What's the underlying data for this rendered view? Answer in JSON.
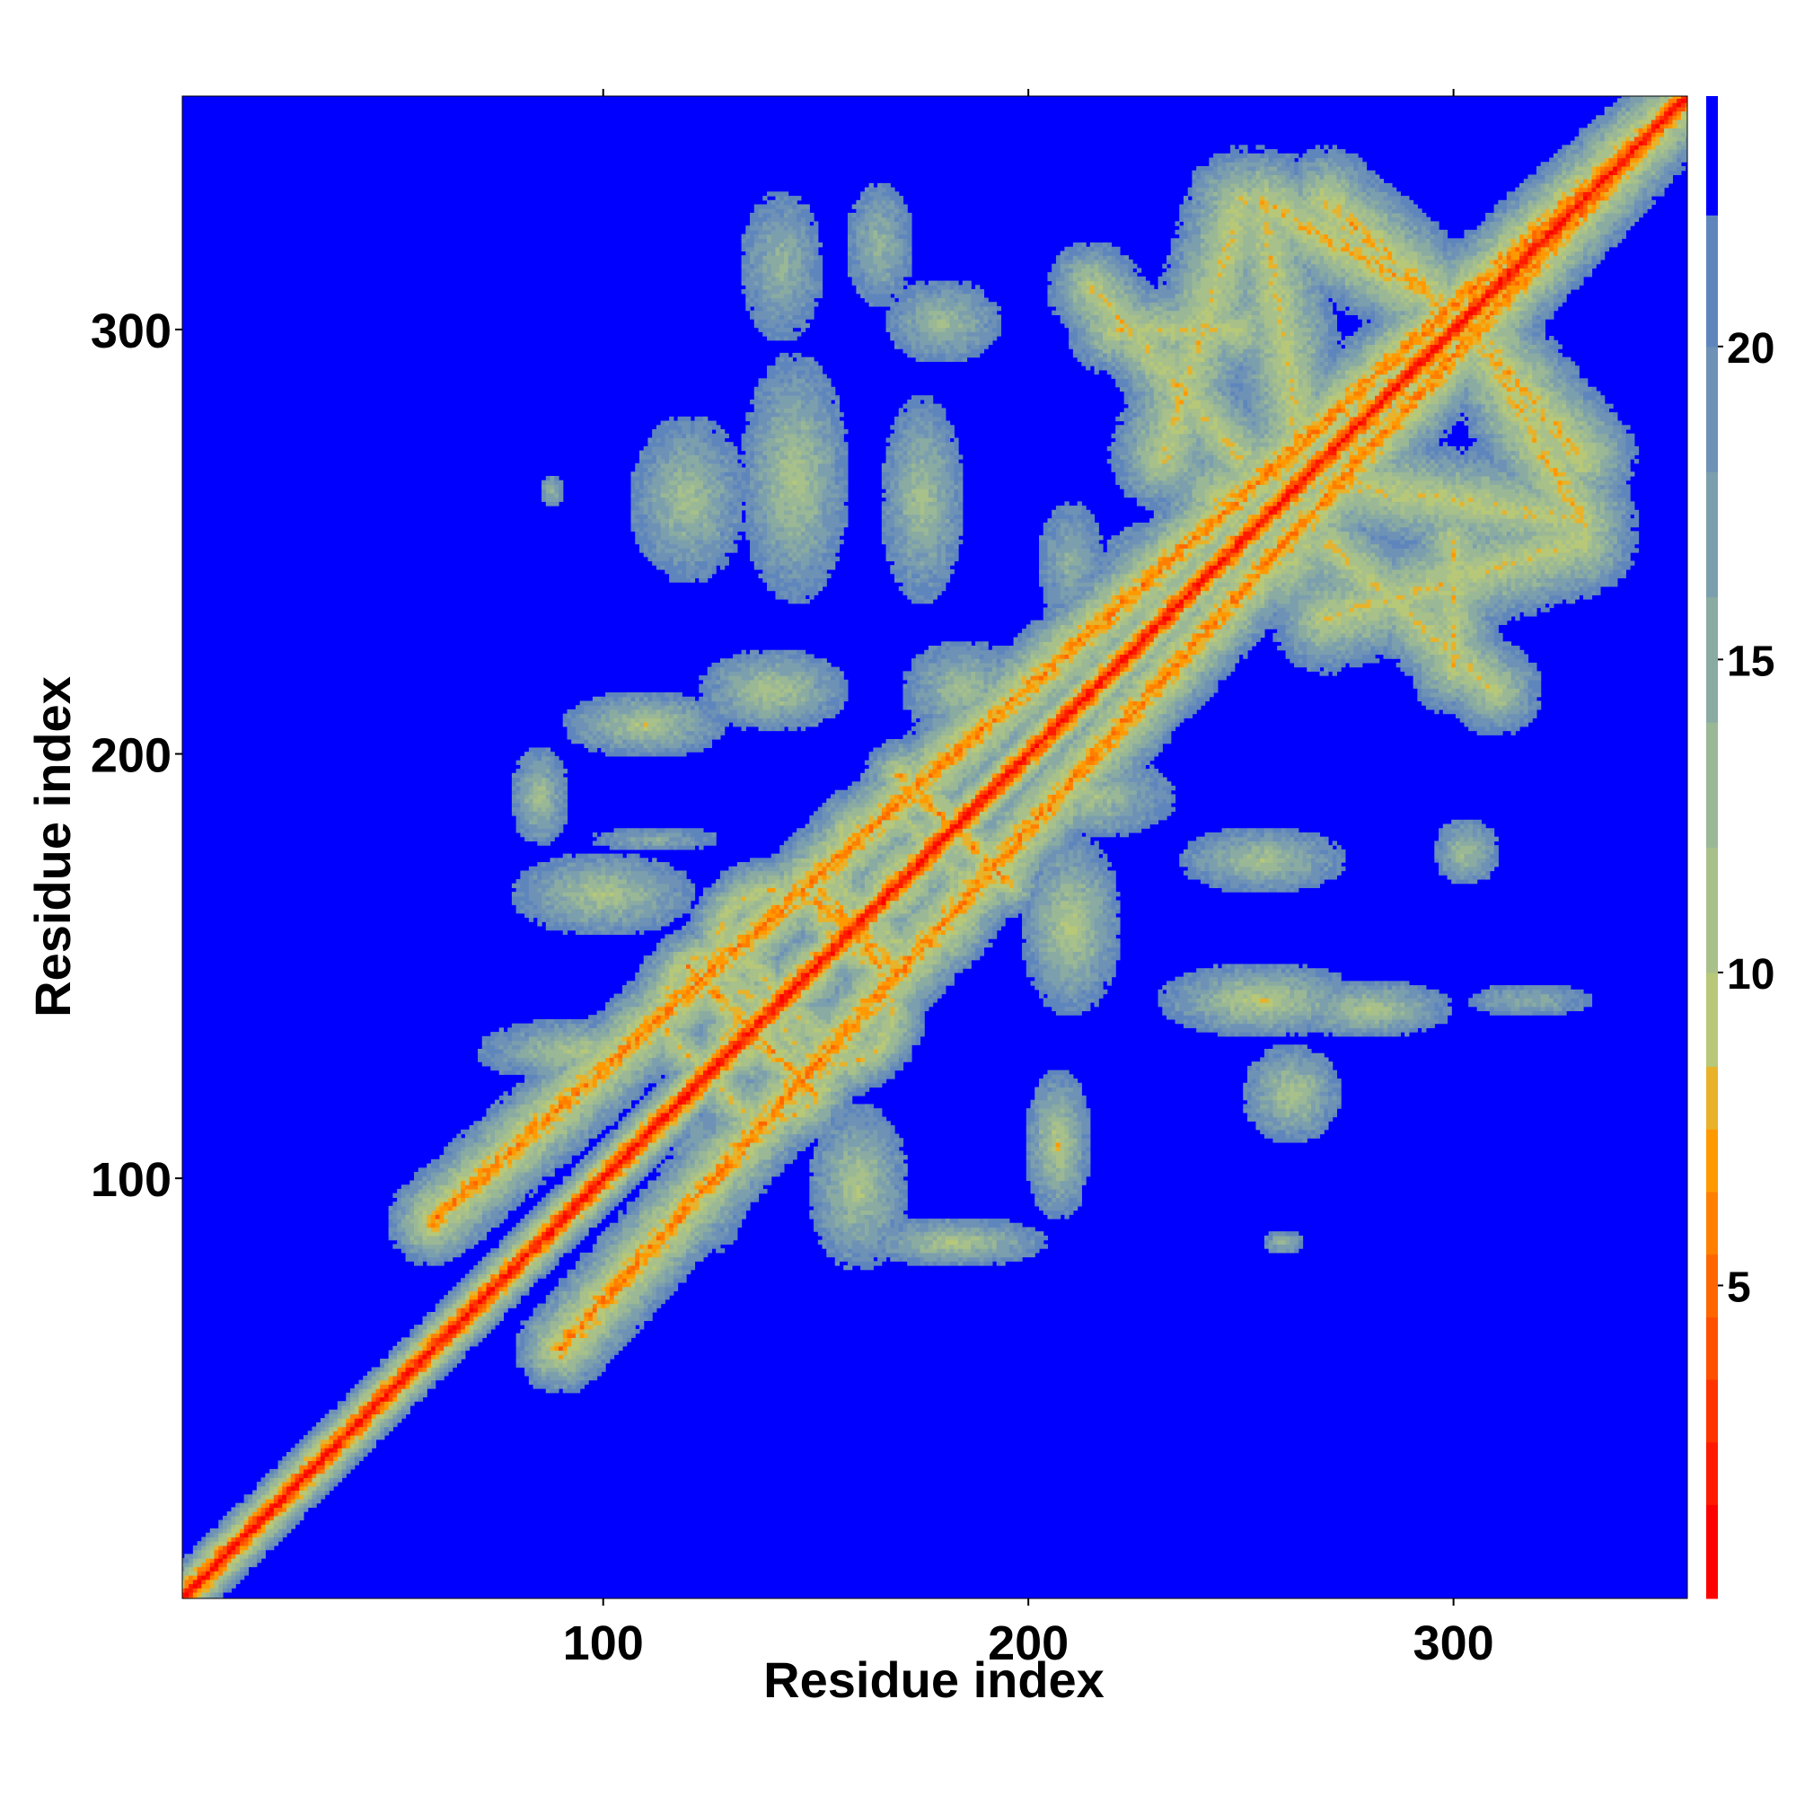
{
  "chart_data": {
    "type": "heatmap",
    "title": "",
    "xlabel": "Residue index",
    "ylabel": "Residue index",
    "xlim": [
      1,
      355
    ],
    "ylim": [
      1,
      355
    ],
    "xticks": [
      100,
      200,
      300
    ],
    "yticks": [
      100,
      200,
      300
    ],
    "colorbar": {
      "range": [
        0,
        24
      ],
      "ticks": [
        5,
        10,
        15,
        20
      ],
      "bands": [
        {
          "from": 0,
          "to": 1.5,
          "color": "#ff0000"
        },
        {
          "from": 1.5,
          "to": 2.5,
          "color": "#ff1a00"
        },
        {
          "from": 2.5,
          "to": 3.5,
          "color": "#ff3300"
        },
        {
          "from": 3.5,
          "to": 4.5,
          "color": "#ff5000"
        },
        {
          "from": 4.5,
          "to": 5.5,
          "color": "#ff6600"
        },
        {
          "from": 5.5,
          "to": 6.5,
          "color": "#ff8000"
        },
        {
          "from": 6.5,
          "to": 7.5,
          "color": "#ff9900"
        },
        {
          "from": 7.5,
          "to": 8.5,
          "color": "#e8b22a"
        },
        {
          "from": 8.5,
          "to": 10,
          "color": "#b7c878"
        },
        {
          "from": 10,
          "to": 12,
          "color": "#a8c08a"
        },
        {
          "from": 12,
          "to": 14,
          "color": "#9ab896"
        },
        {
          "from": 14,
          "to": 16,
          "color": "#8aaba2"
        },
        {
          "from": 16,
          "to": 18,
          "color": "#7c9fae"
        },
        {
          "from": 18,
          "to": 20,
          "color": "#6e92b6"
        },
        {
          "from": 20,
          "to": 22.1,
          "color": "#5f86bc"
        },
        {
          "from": 22.1,
          "to": 24,
          "color": "#0000ff"
        }
      ]
    },
    "background_color": "#0000ff",
    "diagonal_color": "#ff0000",
    "features": [
      {
        "kind": "band",
        "x1": 60,
        "y1": 90,
        "x2": 355,
        "y2": 355,
        "sigma": 5,
        "peak": 6
      },
      {
        "kind": "band",
        "x1": 120,
        "y1": 150,
        "x2": 140,
        "y2": 130,
        "sigma": 4,
        "peak": 7
      },
      {
        "kind": "band",
        "x1": 150,
        "y1": 170,
        "x2": 165,
        "y2": 150,
        "sigma": 4,
        "peak": 7
      },
      {
        "kind": "band",
        "x1": 170,
        "y1": 195,
        "x2": 195,
        "y2": 170,
        "sigma": 4,
        "peak": 7
      },
      {
        "kind": "band",
        "x1": 300,
        "y1": 305,
        "x2": 330,
        "y2": 270,
        "sigma": 6,
        "peak": 8
      },
      {
        "kind": "band",
        "x1": 255,
        "y1": 330,
        "x2": 300,
        "y2": 305,
        "sigma": 6,
        "peak": 8
      },
      {
        "kind": "band",
        "x1": 300,
        "y1": 305,
        "x2": 260,
        "y2": 245,
        "sigma": 7,
        "peak": 9
      },
      {
        "kind": "band",
        "x1": 265,
        "y1": 265,
        "x2": 330,
        "y2": 255,
        "sigma": 6,
        "peak": 9
      },
      {
        "kind": "band",
        "x1": 232,
        "y1": 270,
        "x2": 250,
        "y2": 330,
        "sigma": 6,
        "peak": 9
      },
      {
        "kind": "band",
        "x1": 220,
        "y1": 300,
        "x2": 250,
        "y2": 300,
        "sigma": 5,
        "peak": 9
      },
      {
        "kind": "band",
        "x1": 270,
        "y1": 250,
        "x2": 310,
        "y2": 215,
        "sigma": 5,
        "peak": 9
      },
      {
        "kind": "ring",
        "cx": 127,
        "cy": 140,
        "r": 13,
        "sigma": 4,
        "peak": 9
      },
      {
        "kind": "ring",
        "cx": 155,
        "cy": 140,
        "r": 13,
        "sigma": 4,
        "peak": 9
      },
      {
        "kind": "ring",
        "cx": 140,
        "cy": 127,
        "r": 13,
        "sigma": 4,
        "peak": 9
      },
      {
        "kind": "ring",
        "cx": 140,
        "cy": 155,
        "r": 13,
        "sigma": 4,
        "peak": 9
      },
      {
        "kind": "ring",
        "cx": 165,
        "cy": 175,
        "r": 11,
        "sigma": 4,
        "peak": 10
      },
      {
        "kind": "blob",
        "cx": 145,
        "cy": 265,
        "rx": 13,
        "ry": 30,
        "peak": 10
      },
      {
        "kind": "blob",
        "cx": 120,
        "cy": 260,
        "rx": 14,
        "ry": 20,
        "peak": 11
      },
      {
        "kind": "blob",
        "cx": 175,
        "cy": 260,
        "rx": 10,
        "ry": 25,
        "peak": 11
      },
      {
        "kind": "blob",
        "cx": 180,
        "cy": 302,
        "rx": 14,
        "ry": 10,
        "peak": 12
      },
      {
        "kind": "blob",
        "cx": 142,
        "cy": 315,
        "rx": 10,
        "ry": 18,
        "peak": 13
      },
      {
        "kind": "blob",
        "cx": 165,
        "cy": 320,
        "rx": 8,
        "ry": 15,
        "peak": 13
      },
      {
        "kind": "blob",
        "cx": 140,
        "cy": 215,
        "rx": 18,
        "ry": 10,
        "peak": 10
      },
      {
        "kind": "blob",
        "cx": 110,
        "cy": 207,
        "rx": 20,
        "ry": 8,
        "peak": 10
      },
      {
        "kind": "blob",
        "cx": 85,
        "cy": 190,
        "rx": 7,
        "ry": 12,
        "peak": 11
      },
      {
        "kind": "blob",
        "cx": 100,
        "cy": 167,
        "rx": 22,
        "ry": 10,
        "peak": 10
      },
      {
        "kind": "blob",
        "cx": 95,
        "cy": 130,
        "rx": 25,
        "ry": 8,
        "peak": 10
      },
      {
        "kind": "blob",
        "cx": 125,
        "cy": 100,
        "rx": 10,
        "ry": 18,
        "peak": 10
      },
      {
        "kind": "blob",
        "cx": 160,
        "cy": 98,
        "rx": 12,
        "ry": 20,
        "peak": 10
      },
      {
        "kind": "blob",
        "cx": 183,
        "cy": 85,
        "rx": 22,
        "ry": 6,
        "peak": 10
      },
      {
        "kind": "blob",
        "cx": 207,
        "cy": 108,
        "rx": 8,
        "ry": 18,
        "peak": 9
      },
      {
        "kind": "blob",
        "cx": 210,
        "cy": 160,
        "rx": 12,
        "ry": 22,
        "peak": 9
      },
      {
        "kind": "blob",
        "cx": 215,
        "cy": 190,
        "rx": 20,
        "ry": 10,
        "peak": 11
      },
      {
        "kind": "blob",
        "cx": 185,
        "cy": 215,
        "rx": 15,
        "ry": 12,
        "peak": 11
      },
      {
        "kind": "blob",
        "cx": 230,
        "cy": 240,
        "rx": 15,
        "ry": 15,
        "peak": 9
      },
      {
        "kind": "blob",
        "cx": 255,
        "cy": 142,
        "rx": 25,
        "ry": 9,
        "peak": 9
      },
      {
        "kind": "blob",
        "cx": 280,
        "cy": 140,
        "rx": 20,
        "ry": 7,
        "peak": 10
      },
      {
        "kind": "blob",
        "cx": 262,
        "cy": 120,
        "rx": 12,
        "ry": 12,
        "peak": 10
      },
      {
        "kind": "blob",
        "cx": 255,
        "cy": 175,
        "rx": 20,
        "ry": 8,
        "peak": 11
      },
      {
        "kind": "blob",
        "cx": 303,
        "cy": 177,
        "rx": 8,
        "ry": 8,
        "peak": 11
      },
      {
        "kind": "blob",
        "cx": 318,
        "cy": 142,
        "rx": 15,
        "ry": 4,
        "peak": 14
      },
      {
        "kind": "blob",
        "cx": 260,
        "cy": 85,
        "rx": 5,
        "ry": 3,
        "peak": 12
      },
      {
        "kind": "blob",
        "cx": 112,
        "cy": 180,
        "rx": 15,
        "ry": 3,
        "peak": 15
      },
      {
        "kind": "blob",
        "cx": 210,
        "cy": 245,
        "rx": 8,
        "ry": 15,
        "peak": 14
      },
      {
        "kind": "blob",
        "cx": 88,
        "cy": 262,
        "rx": 3,
        "ry": 4,
        "peak": 13
      }
    ]
  }
}
